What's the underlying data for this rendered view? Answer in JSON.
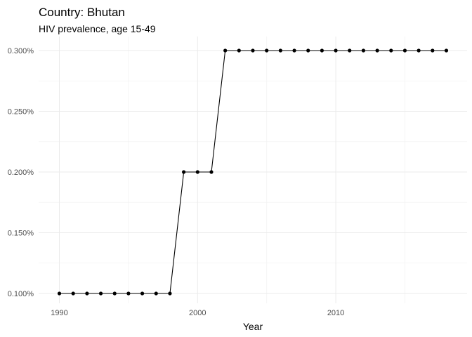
{
  "chart_data": {
    "type": "line",
    "title": "Country: Bhutan",
    "subtitle": "HIV prevalence, age 15-49",
    "xlabel": "Year",
    "ylabel": "",
    "xlim": [
      1988.5,
      2019.5
    ],
    "ylim": [
      0.1,
      0.3
    ],
    "x_ticks": [
      1990,
      2000,
      2010
    ],
    "x_tick_labels": [
      "1990",
      "2000",
      "2010"
    ],
    "y_ticks": [
      0.1,
      0.15,
      0.2,
      0.25,
      0.3
    ],
    "y_tick_labels": [
      "0.100%",
      "0.150%",
      "0.200%",
      "0.250%",
      "0.300%"
    ],
    "grid": true,
    "legend": "none",
    "series": [
      {
        "x": [
          1990,
          1991,
          1992,
          1993,
          1994,
          1995,
          1996,
          1997,
          1998,
          1999,
          2000,
          2001,
          2002,
          2003,
          2004,
          2005,
          2006,
          2007,
          2008,
          2009,
          2010,
          2011,
          2012,
          2013,
          2014,
          2015,
          2016,
          2017,
          2018
        ],
        "y": [
          0.1,
          0.1,
          0.1,
          0.1,
          0.1,
          0.1,
          0.1,
          0.1,
          0.1,
          0.2,
          0.2,
          0.2,
          0.3,
          0.3,
          0.3,
          0.3,
          0.3,
          0.3,
          0.3,
          0.3,
          0.3,
          0.3,
          0.3,
          0.3,
          0.3,
          0.3,
          0.3,
          0.3,
          0.3
        ],
        "color": "#000000"
      }
    ]
  }
}
